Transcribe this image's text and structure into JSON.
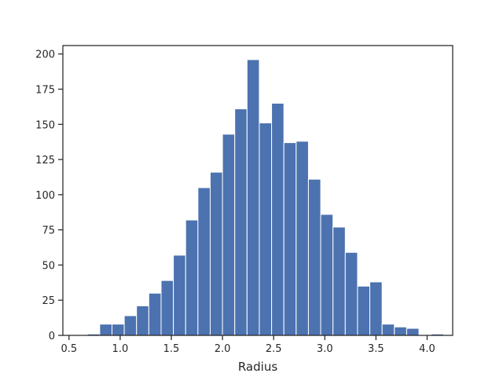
{
  "chart_data": {
    "type": "bar",
    "title": "",
    "xlabel": "Radius",
    "ylabel": "",
    "xlim": [
      0.44,
      4.25
    ],
    "ylim": [
      0,
      206
    ],
    "grid": false,
    "bar_color": "#4c72b0",
    "bin_edges": [
      0.68,
      0.8,
      0.92,
      1.04,
      1.16,
      1.28,
      1.4,
      1.52,
      1.64,
      1.76,
      1.88,
      2.0,
      2.12,
      2.24,
      2.36,
      2.48,
      2.6,
      2.72,
      2.84,
      2.96,
      3.08,
      3.2,
      3.32,
      3.44,
      3.56,
      3.68,
      3.8,
      3.92,
      4.04,
      4.16
    ],
    "values": [
      1,
      8,
      8,
      14,
      21,
      30,
      39,
      57,
      82,
      105,
      116,
      143,
      161,
      196,
      151,
      165,
      137,
      138,
      111,
      86,
      77,
      59,
      35,
      38,
      8,
      6,
      5,
      0,
      1
    ],
    "x_ticks": [
      0.5,
      1.0,
      1.5,
      2.0,
      2.5,
      3.0,
      3.5,
      4.0
    ],
    "x_tick_labels": [
      "0.5",
      "1.0",
      "1.5",
      "2.0",
      "2.5",
      "3.0",
      "3.5",
      "4.0"
    ],
    "y_ticks": [
      0,
      25,
      50,
      75,
      100,
      125,
      150,
      175,
      200
    ],
    "y_tick_labels": [
      "0",
      "25",
      "50",
      "75",
      "100",
      "125",
      "150",
      "175",
      "200"
    ]
  }
}
